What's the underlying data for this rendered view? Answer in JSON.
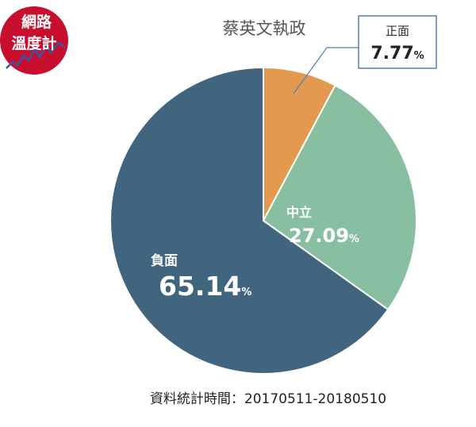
{
  "logo": {
    "line1": "網路",
    "line2": "溫度計",
    "color": "#c8102e"
  },
  "footnote": "資料統計時間：20170511-20180510",
  "chart_data": {
    "type": "pie",
    "title": "蔡英文執政",
    "unit": "%",
    "slices": [
      {
        "label": "正面",
        "value": 7.77,
        "color": "#e39a50"
      },
      {
        "label": "中立",
        "value": 27.09,
        "color": "#87bfa0"
      },
      {
        "label": "負面",
        "value": 65.14,
        "color": "#41647f"
      }
    ],
    "start_angle_deg": 0,
    "direction": "clockwise"
  }
}
